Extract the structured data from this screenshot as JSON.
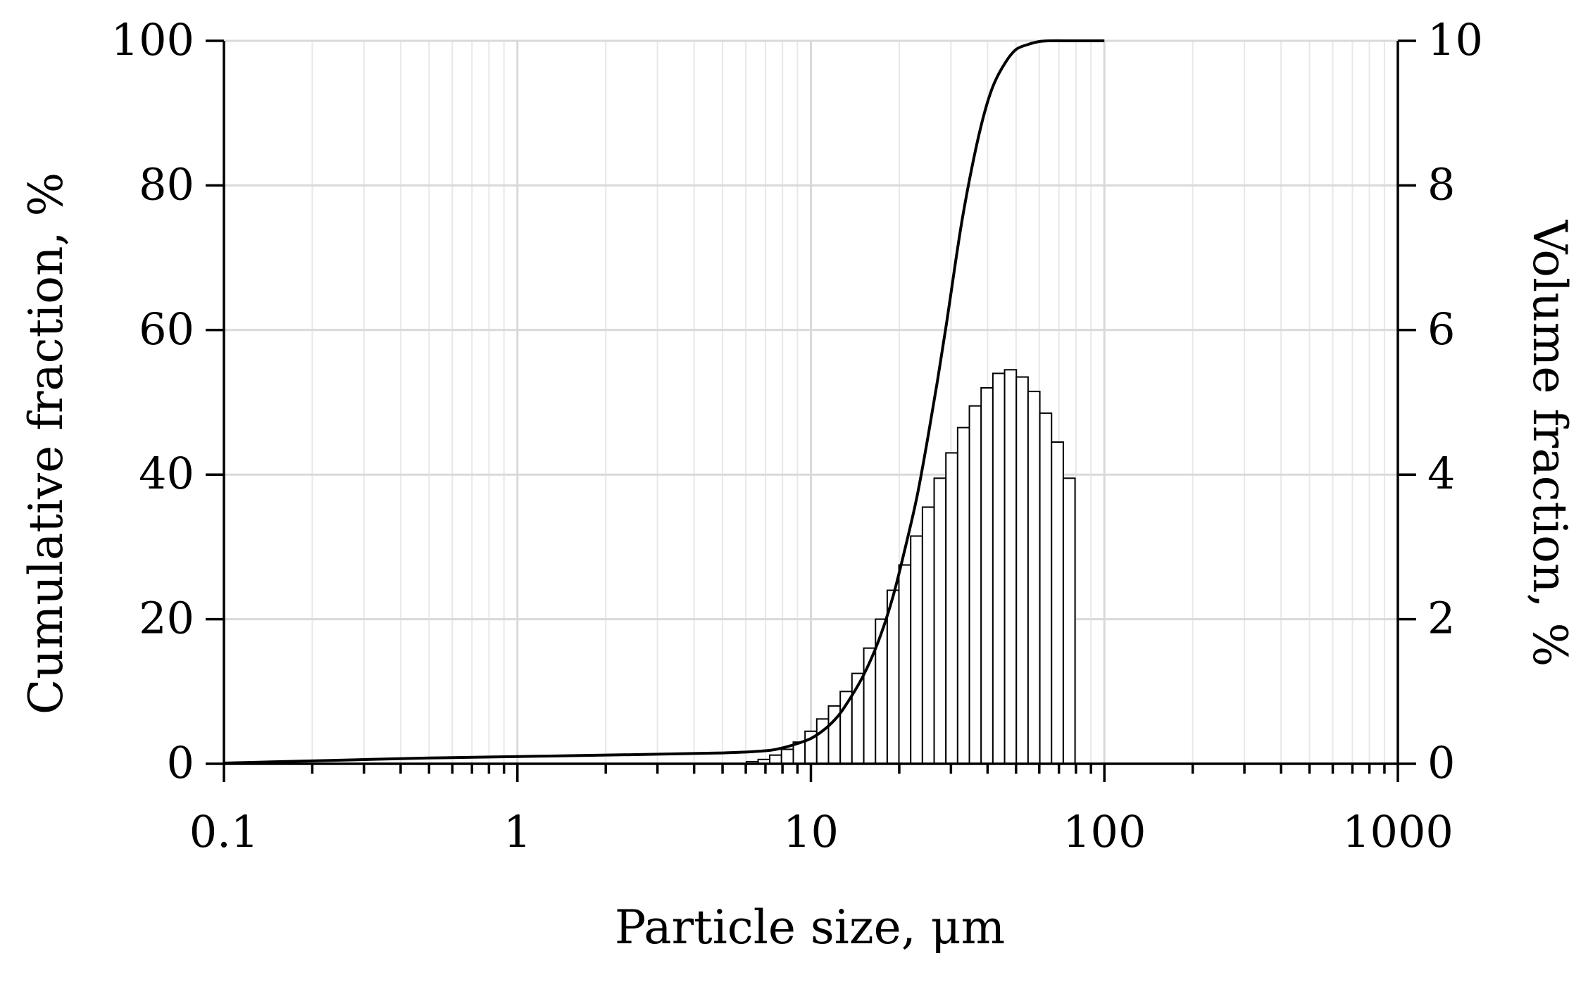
{
  "chart_data": {
    "type": "bar",
    "xlabel": "Particle size, μm",
    "ylabel_left": "Cumulative fraction, %",
    "ylabel_right": "Volume fraction, %",
    "x_scale": "log",
    "xlim": [
      0.1,
      1000
    ],
    "ylim_left": [
      0,
      100
    ],
    "ylim_right": [
      0,
      10
    ],
    "x_ticks": [
      {
        "value": 0.1,
        "label": "0.1"
      },
      {
        "value": 1,
        "label": "1"
      },
      {
        "value": 10,
        "label": "10"
      },
      {
        "value": 100,
        "label": "100"
      },
      {
        "value": 1000,
        "label": "1000"
      }
    ],
    "y_ticks_left": [
      {
        "value": 0,
        "label": "0"
      },
      {
        "value": 20,
        "label": "20"
      },
      {
        "value": 40,
        "label": "40"
      },
      {
        "value": 60,
        "label": "60"
      },
      {
        "value": 80,
        "label": "80"
      },
      {
        "value": 100,
        "label": "100"
      }
    ],
    "y_ticks_right": [
      {
        "value": 0,
        "label": "0"
      },
      {
        "value": 2,
        "label": "2"
      },
      {
        "value": 4,
        "label": "4"
      },
      {
        "value": 6,
        "label": "6"
      },
      {
        "value": 8,
        "label": "8"
      },
      {
        "value": 10,
        "label": "10"
      }
    ],
    "grid": true,
    "series": [
      {
        "type": "bar",
        "axis": "right",
        "bins": [
          {
            "x0": 6.03,
            "x1": 6.61,
            "y": 0.03
          },
          {
            "x0": 6.61,
            "x1": 7.24,
            "y": 0.06
          },
          {
            "x0": 7.24,
            "x1": 7.94,
            "y": 0.12
          },
          {
            "x0": 7.94,
            "x1": 8.71,
            "y": 0.2
          },
          {
            "x0": 8.71,
            "x1": 9.55,
            "y": 0.3
          },
          {
            "x0": 9.55,
            "x1": 10.47,
            "y": 0.45
          },
          {
            "x0": 10.47,
            "x1": 11.48,
            "y": 0.62
          },
          {
            "x0": 11.48,
            "x1": 12.59,
            "y": 0.8
          },
          {
            "x0": 12.59,
            "x1": 13.8,
            "y": 1.0
          },
          {
            "x0": 13.8,
            "x1": 15.14,
            "y": 1.25
          },
          {
            "x0": 15.14,
            "x1": 16.6,
            "y": 1.6
          },
          {
            "x0": 16.6,
            "x1": 18.2,
            "y": 2.0
          },
          {
            "x0": 18.2,
            "x1": 19.95,
            "y": 2.4
          },
          {
            "x0": 19.95,
            "x1": 21.88,
            "y": 2.75
          },
          {
            "x0": 21.88,
            "x1": 23.99,
            "y": 3.15
          },
          {
            "x0": 23.99,
            "x1": 26.3,
            "y": 3.55
          },
          {
            "x0": 26.3,
            "x1": 28.84,
            "y": 3.95
          },
          {
            "x0": 28.84,
            "x1": 31.62,
            "y": 4.3
          },
          {
            "x0": 31.62,
            "x1": 34.67,
            "y": 4.65
          },
          {
            "x0": 34.67,
            "x1": 38.02,
            "y": 4.95
          },
          {
            "x0": 38.02,
            "x1": 41.69,
            "y": 5.2
          },
          {
            "x0": 41.69,
            "x1": 45.71,
            "y": 5.4
          },
          {
            "x0": 45.71,
            "x1": 50.12,
            "y": 5.45
          },
          {
            "x0": 50.12,
            "x1": 54.95,
            "y": 5.35
          },
          {
            "x0": 54.95,
            "x1": 60.26,
            "y": 5.15
          },
          {
            "x0": 60.26,
            "x1": 66.07,
            "y": 4.85
          },
          {
            "x0": 66.07,
            "x1": 72.44,
            "y": 4.45
          },
          {
            "x0": 72.44,
            "x1": 79.43,
            "y": 3.95
          }
        ]
      },
      {
        "type": "line",
        "axis": "left",
        "points": [
          [
            0.1,
            0.1
          ],
          [
            0.2,
            0.4
          ],
          [
            0.5,
            0.8
          ],
          [
            1,
            1.0
          ],
          [
            2,
            1.2
          ],
          [
            5,
            1.5
          ],
          [
            7,
            1.8
          ],
          [
            8,
            2.2
          ],
          [
            9,
            2.8
          ],
          [
            10,
            3.5
          ],
          [
            11,
            4.6
          ],
          [
            12,
            6.0
          ],
          [
            13,
            7.8
          ],
          [
            15,
            12
          ],
          [
            17,
            17
          ],
          [
            19,
            23
          ],
          [
            21,
            30
          ],
          [
            23,
            37
          ],
          [
            25,
            45
          ],
          [
            27,
            53
          ],
          [
            29,
            61
          ],
          [
            31,
            69
          ],
          [
            33,
            76
          ],
          [
            36,
            84
          ],
          [
            39,
            90
          ],
          [
            42,
            94
          ],
          [
            46,
            97
          ],
          [
            50,
            98.8
          ],
          [
            55,
            99.5
          ],
          [
            60,
            99.9
          ],
          [
            65,
            100
          ],
          [
            80,
            100
          ],
          [
            100,
            100
          ]
        ]
      }
    ]
  }
}
